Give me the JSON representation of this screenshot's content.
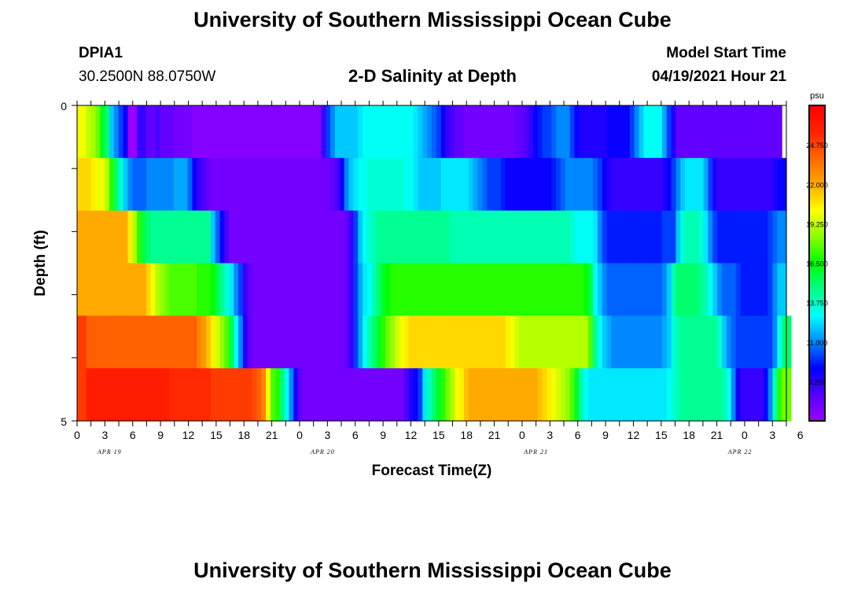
{
  "header": {
    "title": "University of Southern Mississippi Ocean Cube",
    "station": "DPIA1",
    "coords": "30.2500N  88.0750W",
    "chart_title": "2-D Salinity at Depth",
    "model_label": "Model Start Time",
    "model_time": "04/19/2021 Hour 21"
  },
  "footer": {
    "title": "University of Southern Mississippi Ocean Cube"
  },
  "chart_data": {
    "type": "heatmap",
    "title": "2-D Salinity at Depth",
    "xlabel": "Forecast Time(Z)",
    "ylabel": "Depth (ft)",
    "ylim": [
      0,
      5
    ],
    "y_ticks": [
      "0",
      "5"
    ],
    "x_hours": [
      0,
      1,
      2,
      3,
      4,
      5,
      6,
      7,
      8,
      9,
      10,
      11,
      12,
      13,
      14,
      15,
      16,
      17,
      18,
      19,
      20,
      21,
      22,
      23,
      24,
      25,
      26,
      27,
      28,
      29,
      30,
      31,
      32,
      33,
      34,
      35,
      36,
      37,
      38,
      39,
      40,
      41,
      42,
      43,
      44,
      45,
      46,
      47,
      48,
      49,
      50,
      51,
      52,
      53,
      54,
      55,
      56,
      57,
      58,
      59,
      60,
      61,
      62,
      63,
      64,
      65,
      66,
      67,
      68,
      69,
      70,
      71,
      72,
      73,
      74,
      75,
      76,
      77,
      78,
      79,
      80,
      81,
      82,
      83,
      84,
      85,
      86,
      87,
      88,
      89,
      90,
      91,
      92,
      93,
      94,
      95,
      96,
      97,
      98,
      99,
      100,
      101,
      102,
      103,
      104,
      105,
      106,
      107,
      108,
      109,
      110,
      111,
      112,
      113,
      114,
      115,
      116,
      117,
      118,
      119,
      120,
      121,
      122,
      123,
      124,
      125,
      126,
      127,
      128,
      129,
      130,
      131,
      132,
      133,
      134,
      135,
      136,
      137,
      138,
      139,
      140,
      141,
      142,
      143,
      144,
      145,
      146,
      147,
      148,
      149,
      150,
      151,
      152,
      153
    ],
    "x_tick_labels": [
      "0",
      "3",
      "6",
      "9",
      "12",
      "15",
      "18",
      "21",
      "0",
      "3",
      "6",
      "9",
      "12",
      "15",
      "18",
      "21",
      "0",
      "3",
      "6",
      "9",
      "12",
      "15",
      "18",
      "21",
      "0",
      "3",
      "6"
    ],
    "date_labels": [
      "APR 19",
      "APR 20",
      "APR 21",
      "APR 22"
    ],
    "colorbar": {
      "unit": "psu",
      "min": 5.5,
      "max": 27.5,
      "tick_labels": [
        "8.250",
        "11.000",
        "13.750",
        "16.500",
        "19.250",
        "22.000",
        "24.750"
      ],
      "tick_values": [
        8.25,
        11.0,
        13.75,
        16.5,
        19.25,
        22.0,
        24.75
      ],
      "colors": [
        "#9900ff",
        "#5500ff",
        "#0000ff",
        "#0088ff",
        "#00ffff",
        "#00ff88",
        "#00ff00",
        "#88ff00",
        "#ffff00",
        "#ffaa00",
        "#ff6600",
        "#ff2200",
        "#ff0000"
      ]
    },
    "layers": [
      {
        "depth": "0.0",
        "values": [
          20.0,
          20.0,
          19.2,
          18.8,
          18.0,
          16.0,
          15.0,
          12.0,
          11.0,
          10.0,
          9.0,
          5.5,
          5.5,
          8.0,
          8.0,
          7.0,
          7.0,
          7.5,
          7.0,
          7.0,
          7.0,
          6.5,
          6.5,
          6.5,
          6.5,
          6.0,
          6.0,
          6.0,
          6.0,
          6.0,
          6.0,
          6.0,
          6.0,
          6.0,
          6.0,
          6.0,
          6.0,
          6.0,
          6.0,
          6.0,
          6.0,
          6.0,
          6.0,
          6.0,
          6.0,
          6.0,
          6.0,
          6.0,
          6.0,
          6.0,
          6.0,
          6.0,
          6.0,
          8.0,
          10.0,
          11.0,
          12.0,
          12.0,
          12.0,
          12.0,
          12.0,
          12.5,
          13.0,
          13.0,
          13.0,
          13.0,
          13.0,
          13.0,
          13.0,
          13.0,
          13.0,
          13.0,
          13.0,
          12.5,
          12.0,
          11.5,
          11.0,
          10.5,
          10.0,
          9.0,
          8.0,
          7.5,
          7.0,
          7.0,
          6.5,
          6.5,
          6.5,
          6.5,
          6.5,
          6.5,
          6.5,
          6.5,
          6.5,
          6.5,
          6.5,
          7.0,
          7.0,
          7.5,
          8.0,
          9.0,
          9.5,
          10.0,
          10.0,
          10.5,
          11.0,
          11.0,
          11.0,
          10.0,
          9.0,
          8.5,
          8.5,
          8.5,
          8.5,
          8.5,
          8.5,
          9.0,
          9.0,
          9.0,
          9.0,
          9.0,
          10.0,
          11.0,
          12.0,
          13.0,
          13.0,
          13.0,
          13.0,
          11.5,
          10.0,
          8.5,
          7.0,
          7.0,
          7.0,
          7.0,
          7.0,
          7.0,
          7.0,
          7.0,
          7.0,
          7.0,
          7.0,
          7.0,
          7.0,
          7.0,
          7.0,
          7.0,
          7.0,
          7.0,
          7.0,
          7.0,
          7.0,
          7.0,
          7.0
        ]
      },
      {
        "depth": "1.0",
        "values": [
          21.0,
          21.0,
          21.0,
          20.5,
          20.0,
          20.0,
          19.0,
          17.0,
          15.0,
          13.5,
          12.0,
          11.0,
          10.5,
          10.5,
          10.5,
          11.0,
          11.0,
          11.0,
          11.0,
          11.0,
          11.0,
          11.5,
          11.5,
          11.5,
          10.5,
          9.0,
          8.0,
          7.5,
          7.0,
          6.5,
          6.5,
          6.5,
          6.5,
          6.5,
          6.5,
          6.5,
          6.5,
          6.5,
          6.5,
          6.5,
          6.5,
          6.5,
          6.5,
          6.5,
          6.5,
          6.5,
          6.5,
          6.5,
          6.5,
          6.5,
          6.5,
          6.5,
          6.5,
          6.5,
          6.5,
          7.0,
          7.5,
          9.0,
          11.0,
          12.0,
          12.5,
          13.0,
          13.0,
          13.5,
          13.5,
          13.5,
          13.5,
          13.5,
          13.5,
          13.5,
          13.5,
          13.0,
          13.0,
          12.5,
          12.0,
          12.0,
          12.0,
          12.0,
          12.0,
          12.5,
          12.5,
          12.5,
          12.5,
          12.5,
          12.5,
          12.0,
          11.5,
          11.0,
          10.5,
          10.0,
          10.0,
          10.0,
          9.5,
          9.0,
          9.0,
          9.0,
          9.0,
          9.0,
          9.0,
          9.0,
          9.0,
          9.0,
          9.0,
          9.5,
          10.0,
          10.5,
          11.0,
          11.0,
          11.0,
          11.0,
          11.0,
          11.0,
          10.5,
          10.0,
          9.0,
          8.5,
          8.0,
          8.0,
          8.0,
          8.0,
          8.0,
          8.0,
          8.0,
          8.0,
          8.0,
          8.0,
          8.0,
          8.5,
          9.0,
          10.0,
          11.0,
          12.0,
          12.5,
          12.5,
          12.5,
          12.5,
          11.5,
          10.0,
          8.5,
          8.0,
          8.0,
          8.0,
          8.0,
          8.0,
          8.0,
          8.0,
          8.0,
          8.0,
          8.0,
          8.0,
          8.0,
          8.5,
          9.0,
          9.0
        ]
      },
      {
        "depth": "2.0",
        "values": [
          22.0,
          22.0,
          22.0,
          22.0,
          22.0,
          22.0,
          22.0,
          22.0,
          22.0,
          22.0,
          22.0,
          20.5,
          19.0,
          17.0,
          15.5,
          15.0,
          14.5,
          14.5,
          14.5,
          14.5,
          14.5,
          14.5,
          14.5,
          14.5,
          14.5,
          14.5,
          14.5,
          14.5,
          14.5,
          12.0,
          10.5,
          9.0,
          7.5,
          6.5,
          6.5,
          6.5,
          6.5,
          6.5,
          6.5,
          6.5,
          6.5,
          6.5,
          6.5,
          6.5,
          6.5,
          6.5,
          6.5,
          6.5,
          6.5,
          6.5,
          6.5,
          6.5,
          6.5,
          6.5,
          6.5,
          6.5,
          6.5,
          6.5,
          7.0,
          8.0,
          10.0,
          12.0,
          13.0,
          13.5,
          14.0,
          14.5,
          14.5,
          14.5,
          14.5,
          14.5,
          14.5,
          14.5,
          14.5,
          14.5,
          14.5,
          14.5,
          14.5,
          14.5,
          14.5,
          14.5,
          14.5,
          14.0,
          14.0,
          14.0,
          14.0,
          14.0,
          14.0,
          14.0,
          14.0,
          14.0,
          14.0,
          14.0,
          14.0,
          14.0,
          14.0,
          14.0,
          14.0,
          14.0,
          14.0,
          14.0,
          14.0,
          14.0,
          14.0,
          14.0,
          14.0,
          14.0,
          14.0,
          13.5,
          13.0,
          13.0,
          13.0,
          13.0,
          12.5,
          11.0,
          10.0,
          9.5,
          9.5,
          9.5,
          9.5,
          9.5,
          9.5,
          9.5,
          9.5,
          9.5,
          9.5,
          9.5,
          9.5,
          10.0,
          10.0,
          10.0,
          12.0,
          13.5,
          14.0,
          14.0,
          14.0,
          13.5,
          12.5,
          11.0,
          10.0,
          9.5,
          9.5,
          9.5,
          9.5,
          9.5,
          9.5,
          9.5,
          9.5,
          9.5,
          9.5,
          9.5,
          10.0,
          10.5,
          11.0,
          11.0
        ]
      },
      {
        "depth": "3.0",
        "values": [
          22.0,
          22.0,
          22.0,
          22.0,
          22.0,
          22.0,
          22.0,
          22.0,
          22.0,
          22.0,
          22.0,
          22.0,
          22.0,
          22.0,
          22.0,
          21.0,
          20.0,
          19.0,
          18.5,
          18.0,
          17.5,
          17.5,
          17.5,
          17.5,
          17.5,
          17.5,
          17.0,
          17.0,
          17.0,
          16.5,
          15.5,
          14.5,
          13.5,
          12.5,
          11.0,
          10.0,
          8.0,
          7.0,
          6.5,
          6.5,
          6.5,
          6.5,
          6.5,
          6.5,
          6.5,
          6.5,
          6.5,
          6.5,
          6.5,
          6.5,
          6.5,
          6.5,
          6.5,
          6.5,
          6.5,
          6.5,
          6.5,
          6.5,
          7.0,
          8.0,
          10.0,
          11.5,
          12.5,
          13.0,
          14.0,
          15.0,
          16.0,
          16.5,
          17.0,
          17.0,
          17.0,
          17.0,
          17.0,
          17.0,
          17.0,
          17.0,
          17.0,
          17.0,
          17.0,
          17.0,
          17.0,
          17.0,
          17.0,
          17.0,
          17.0,
          17.0,
          17.0,
          17.0,
          17.0,
          17.0,
          17.0,
          17.0,
          17.0,
          17.0,
          17.0,
          17.0,
          17.0,
          17.0,
          17.0,
          17.0,
          17.0,
          17.0,
          17.0,
          17.0,
          17.0,
          17.0,
          17.0,
          17.0,
          17.0,
          17.0,
          16.5,
          15.5,
          13.0,
          12.0,
          11.0,
          10.5,
          10.5,
          10.5,
          10.5,
          10.5,
          10.5,
          10.5,
          10.5,
          10.5,
          10.5,
          10.5,
          10.5,
          11.0,
          12.0,
          14.0,
          15.0,
          15.0,
          15.0,
          15.0,
          15.0,
          14.5,
          14.0,
          13.0,
          12.0,
          11.0,
          10.5,
          10.5,
          10.5,
          10.0,
          9.5,
          9.5,
          9.5,
          9.5,
          9.5,
          9.5,
          10.0,
          11.0,
          12.0,
          12.0
        ]
      },
      {
        "depth": "4.0",
        "values": [
          25.0,
          25.0,
          24.0,
          24.0,
          24.0,
          24.0,
          24.0,
          24.0,
          24.0,
          24.0,
          24.0,
          24.0,
          24.0,
          24.0,
          24.0,
          24.0,
          24.0,
          24.0,
          24.0,
          24.0,
          24.0,
          24.0,
          24.0,
          24.0,
          24.0,
          24.0,
          23.0,
          22.5,
          21.5,
          20.5,
          19.5,
          18.5,
          17.5,
          15.5,
          13.0,
          11.0,
          8.5,
          7.0,
          6.5,
          6.5,
          6.5,
          6.5,
          6.5,
          6.5,
          6.5,
          6.5,
          6.5,
          6.5,
          6.5,
          6.5,
          6.5,
          6.5,
          6.5,
          6.5,
          6.5,
          6.5,
          6.5,
          6.5,
          7.0,
          8.0,
          10.0,
          11.5,
          13.0,
          14.0,
          15.0,
          16.0,
          17.0,
          18.0,
          18.5,
          19.5,
          20.0,
          20.5,
          21.0,
          21.0,
          21.0,
          21.0,
          21.0,
          21.0,
          21.0,
          21.0,
          21.0,
          21.0,
          21.0,
          21.0,
          21.0,
          21.0,
          21.0,
          21.0,
          21.0,
          21.0,
          21.0,
          21.0,
          21.0,
          20.5,
          20.0,
          19.5,
          19.0,
          19.0,
          19.0,
          19.0,
          19.0,
          19.0,
          19.0,
          19.0,
          19.0,
          19.0,
          19.0,
          19.0,
          19.0,
          19.0,
          19.0,
          17.5,
          14.5,
          13.0,
          12.0,
          11.5,
          11.0,
          11.0,
          11.0,
          11.0,
          11.0,
          11.0,
          11.0,
          11.0,
          11.0,
          11.0,
          11.0,
          11.5,
          12.0,
          13.5,
          14.0,
          14.5,
          14.5,
          14.5,
          14.5,
          14.5,
          14.5,
          14.5,
          14.5,
          13.5,
          12.0,
          11.0,
          10.5,
          10.0,
          10.0,
          10.0,
          10.0,
          10.0,
          10.0,
          10.0,
          10.0,
          11.0,
          13.0,
          15.0,
          15.0
        ]
      },
      {
        "depth": "5.0",
        "values": [
          25.0,
          25.0,
          26.0,
          26.0,
          26.0,
          26.0,
          26.0,
          26.0,
          26.0,
          26.0,
          26.0,
          26.0,
          26.0,
          26.0,
          26.0,
          26.0,
          26.0,
          26.0,
          26.0,
          26.0,
          25.5,
          25.5,
          25.5,
          25.5,
          25.5,
          25.5,
          25.5,
          25.5,
          25.5,
          25.0,
          25.0,
          25.0,
          25.0,
          25.0,
          25.0,
          25.0,
          25.0,
          25.0,
          24.5,
          24.0,
          23.0,
          20.0,
          17.5,
          17.0,
          15.0,
          13.0,
          11.0,
          8.5,
          7.0,
          6.5,
          6.5,
          6.5,
          6.5,
          6.5,
          6.5,
          6.5,
          6.5,
          6.5,
          6.5,
          6.5,
          6.5,
          6.5,
          6.5,
          6.5,
          6.5,
          6.5,
          6.5,
          6.5,
          6.5,
          6.5,
          6.5,
          7.5,
          8.5,
          9.0,
          10.0,
          12.5,
          14.0,
          15.0,
          16.0,
          17.0,
          18.0,
          19.0,
          20.0,
          20.5,
          21.5,
          22.0,
          22.0,
          22.0,
          22.0,
          22.0,
          22.0,
          22.0,
          22.0,
          22.0,
          22.0,
          22.0,
          22.0,
          22.0,
          22.0,
          22.0,
          21.5,
          21.0,
          20.5,
          20.0,
          19.5,
          19.0,
          18.5,
          17.5,
          16.0,
          14.0,
          13.0,
          12.5,
          12.5,
          12.5,
          12.5,
          12.5,
          12.5,
          12.5,
          12.5,
          12.5,
          12.5,
          12.5,
          12.5,
          12.5,
          12.5,
          12.5,
          12.5,
          12.5,
          13.0,
          13.5,
          14.0,
          14.5,
          14.5,
          14.5,
          14.5,
          14.5,
          14.5,
          14.5,
          14.5,
          14.5,
          14.0,
          13.0,
          11.0,
          9.0,
          8.0,
          8.0,
          8.0,
          8.0,
          8.0,
          9.0,
          11.0,
          14.0,
          17.0,
          18.0,
          18.0
        ]
      }
    ]
  }
}
